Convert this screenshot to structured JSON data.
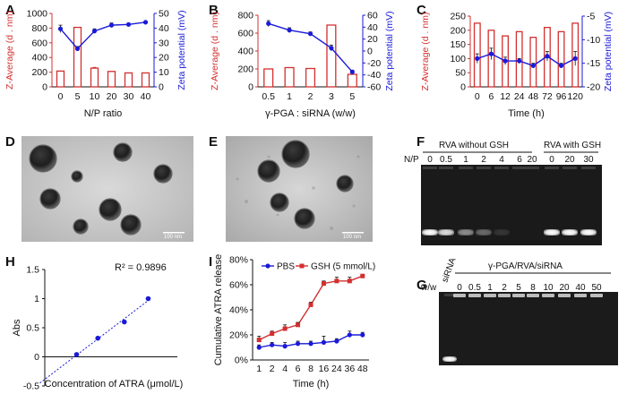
{
  "panels": {
    "A": "A",
    "B": "B",
    "C": "C",
    "D": "D",
    "E": "E",
    "F": "F",
    "G": "G",
    "H": "H",
    "I": "I"
  },
  "colors": {
    "red": "#d32f2f",
    "blue": "#1a1ad8",
    "gel": "#1a1a1a"
  },
  "chart_data": [
    {
      "id": "A",
      "type": "bar+line",
      "categories": [
        "0",
        "5",
        "10",
        "20",
        "30",
        "40"
      ],
      "bar_values": [
        215,
        810,
        255,
        210,
        190,
        190
      ],
      "bar_err": [
        0,
        0,
        10,
        0,
        0,
        0
      ],
      "line_values": [
        39.5,
        26,
        38,
        42,
        42.5,
        44
      ],
      "line_err": [
        2.5,
        1.5,
        1.5,
        1.5,
        0,
        0
      ],
      "xlabel": "N/P ratio",
      "ylabel_left": "Z-Average (d . nm)",
      "ylabel_right": "Zeta potential (mV)",
      "ylim_left": [
        0,
        1000
      ],
      "yticks_left": [
        "0",
        "200",
        "400",
        "600",
        "800",
        "1000"
      ],
      "ylim_right": [
        0,
        50
      ],
      "yticks_right": [
        "0",
        "10",
        "20",
        "30",
        "40",
        "50"
      ]
    },
    {
      "id": "B",
      "type": "bar+line",
      "categories": [
        "0.5",
        "1",
        "2",
        "3",
        "5"
      ],
      "bar_values": [
        200,
        215,
        205,
        690,
        140
      ],
      "bar_err": [
        0,
        0,
        0,
        0,
        0
      ],
      "line_values": [
        46,
        35,
        29,
        5,
        -35
      ],
      "line_err": [
        5,
        4,
        3,
        5,
        3
      ],
      "xlabel": "γ-PGA : siRNA (w/w)",
      "ylabel_left": "Z-Average (d . nm)",
      "ylabel_right": "Zeta potential (mV)",
      "ylim_left": [
        0,
        800
      ],
      "yticks_left": [
        "0",
        "200",
        "400",
        "600",
        "800"
      ],
      "ylim_right": [
        -60,
        60
      ],
      "yticks_right": [
        "-60",
        "-40",
        "-20",
        "0",
        "20",
        "40",
        "60"
      ]
    },
    {
      "id": "C",
      "type": "bar+line",
      "categories": [
        "0",
        "6",
        "12",
        "24",
        "48",
        "72",
        "96",
        "120"
      ],
      "bar_values": [
        225,
        200,
        180,
        195,
        175,
        210,
        195,
        225
      ],
      "bar_err": [
        0,
        0,
        0,
        0,
        0,
        0,
        0,
        0
      ],
      "line_values": [
        -14,
        -13,
        -14.5,
        -14.5,
        -15.5,
        -13.5,
        -15.5,
        -14
      ],
      "line_err": [
        1,
        1.2,
        0.8,
        0.5,
        0.5,
        1,
        0.5,
        1.5
      ],
      "xlabel": "Time (h)",
      "ylabel_left": "Z-Average (d . nm)",
      "ylabel_right": "Zeta potential (mV)",
      "ylim_left": [
        0,
        250
      ],
      "yticks_left": [
        "0",
        "50",
        "100",
        "150",
        "200",
        "250"
      ],
      "ylim_right": [
        -20,
        -5
      ],
      "yticks_right": [
        "-20",
        "-15",
        "-10",
        "-5"
      ]
    },
    {
      "id": "H",
      "type": "scatter",
      "x": [
        6,
        10,
        15,
        19.5
      ],
      "y": [
        0.04,
        0.32,
        0.6,
        1.0
      ],
      "fit": "linear",
      "r2_text": "R² = 0.9896",
      "xlabel": "Concentration of ATRA (μmol/L)",
      "ylabel": "Abs",
      "ylim": [
        -0.5,
        1.5
      ],
      "yticks": [
        "-0.5",
        "0",
        "0.5",
        "1",
        "1.5"
      ],
      "xlim": [
        0,
        25
      ]
    },
    {
      "id": "I",
      "type": "line",
      "categories": [
        "1",
        "2",
        "4",
        "6",
        "8",
        "16",
        "24",
        "36",
        "48"
      ],
      "series": [
        {
          "name": "PBS",
          "values": [
            10,
            12,
            11,
            13,
            13,
            14,
            15,
            20,
            20
          ],
          "err": [
            2,
            2,
            3,
            2,
            2,
            5,
            2,
            3,
            2
          ]
        },
        {
          "name": "GSH (5 mmol/L)",
          "values": [
            16,
            21,
            25,
            28,
            44,
            61,
            63,
            63,
            67
          ],
          "err": [
            3,
            2,
            3,
            2,
            2,
            2,
            3,
            3,
            1
          ]
        }
      ],
      "xlabel": "Time (h)",
      "ylabel": "Cumulative ATRA release",
      "ylim": [
        0,
        80
      ],
      "yticks": [
        "0%",
        "20%",
        "40%",
        "60%",
        "80%"
      ]
    }
  ],
  "gel_F": {
    "group1": "RVA without GSH",
    "group2": "RVA with GSH",
    "np_label": "N/P",
    "lanes1": [
      "0",
      "0.5",
      "1",
      "2",
      "4",
      "6",
      "20"
    ],
    "lanes2": [
      "0",
      "20",
      "30"
    ]
  },
  "gel_G": {
    "title": "γ-PGA/RVA/siRNA",
    "wlabel": "w/w",
    "sirna": "siRNA",
    "lanes": [
      "0",
      "0.5",
      "1",
      "2",
      "5",
      "8",
      "10",
      "20",
      "40",
      "50"
    ]
  },
  "tem": {
    "scale_bar": "100 nm"
  }
}
